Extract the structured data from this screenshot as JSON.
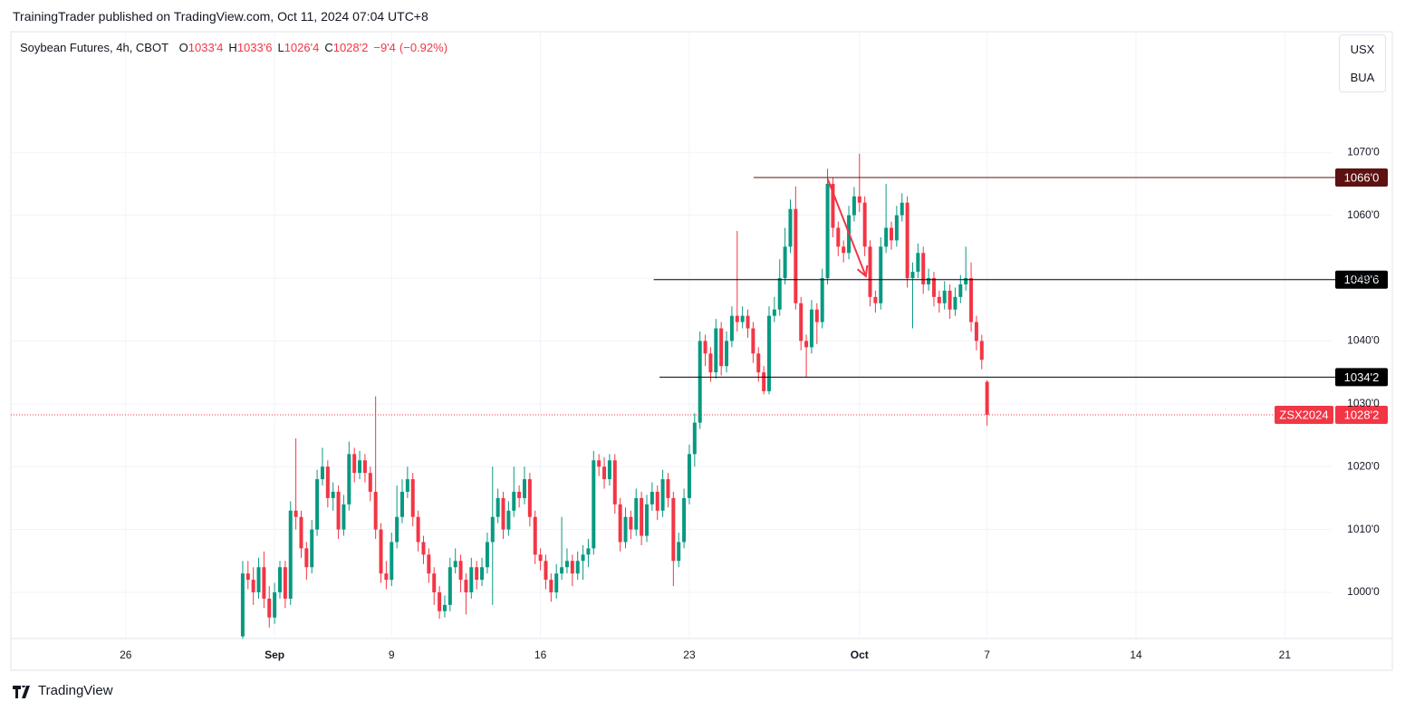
{
  "header": "TrainingTrader published on TradingView.com, Oct 11, 2024 07:04 UTC+8",
  "legend": {
    "symbol": "Soybean Futures, 4h, CBOT",
    "fields": [
      {
        "key": "O",
        "value": 1033.5,
        "label": "1033'4"
      },
      {
        "key": "H",
        "value": 1033.75,
        "label": "1033'6"
      },
      {
        "key": "L",
        "value": 1026.5,
        "label": "1026'4"
      },
      {
        "key": "C",
        "value": 1028.25,
        "label": "1028'2"
      }
    ],
    "change": {
      "value": -9.5,
      "label": "−9'4"
    },
    "change_pct": {
      "value": -0.92,
      "label": "(−0.92%)"
    }
  },
  "buttons": [
    "USX",
    "BUA"
  ],
  "footer": "TradingView",
  "chart_data": {
    "type": "candlestick",
    "up_color": "#089981",
    "down_color": "#f23645",
    "grid": true,
    "xlim": [
      -43.6,
      204.8
    ],
    "ylim": [
      992.65,
      1089.2
    ],
    "xticks": [
      {
        "value": -22,
        "label": "26"
      },
      {
        "value": 6,
        "label": "Sep"
      },
      {
        "value": 28,
        "label": "9"
      },
      {
        "value": 56,
        "label": "16"
      },
      {
        "value": 84,
        "label": "23"
      },
      {
        "value": 116,
        "label": "Oct"
      },
      {
        "value": 140,
        "label": "7"
      },
      {
        "value": 168,
        "label": "14"
      },
      {
        "value": 196,
        "label": "21"
      }
    ],
    "yticks": [
      {
        "value": 1000,
        "label": "1000'0"
      },
      {
        "value": 1010,
        "label": "1010'0"
      },
      {
        "value": 1020,
        "label": "1020'0"
      },
      {
        "value": 1030,
        "label": "1030'0"
      },
      {
        "value": 1040,
        "label": "1040'0"
      },
      {
        "value": 1050,
        "label": "1050'0"
      },
      {
        "value": 1060,
        "label": "1060'0"
      },
      {
        "value": 1070,
        "label": "1070'0"
      }
    ],
    "ohlc": [
      [
        993,
        1005,
        992.6,
        1003
      ],
      [
        1003,
        1005,
        1000.5,
        1002
      ],
      [
        1002,
        1004,
        998,
        1000
      ],
      [
        1000,
        1005.5,
        999,
        1004
      ],
      [
        1004,
        1006.5,
        997.5,
        999
      ],
      [
        999,
        1001,
        994.4,
        996
      ],
      [
        996,
        1001.5,
        995,
        1000
      ],
      [
        1000,
        1005,
        999,
        1004
      ],
      [
        1004,
        1005,
        997.5,
        999
      ],
      [
        999,
        1014.5,
        998,
        1013
      ],
      [
        1013,
        1024.5,
        1010,
        1012
      ],
      [
        1012,
        1013,
        1005.5,
        1007
      ],
      [
        1007,
        1008,
        1002,
        1004
      ],
      [
        1004,
        1011.5,
        1003,
        1010
      ],
      [
        1010,
        1019.5,
        1009,
        1018
      ],
      [
        1018,
        1023,
        1017,
        1020
      ],
      [
        1020,
        1021,
        1013.5,
        1015
      ],
      [
        1015,
        1017.5,
        1013,
        1016
      ],
      [
        1016,
        1017,
        1008.5,
        1010
      ],
      [
        1010,
        1015.5,
        1009,
        1014
      ],
      [
        1014,
        1024,
        1013,
        1022
      ],
      [
        1022,
        1023,
        1017.5,
        1019
      ],
      [
        1019,
        1022.5,
        1018,
        1021
      ],
      [
        1021,
        1022,
        1017.5,
        1019
      ],
      [
        1019,
        1020,
        1014.5,
        1016
      ],
      [
        1016,
        1031.2,
        1008.5,
        1010
      ],
      [
        1010,
        1011,
        1001.5,
        1003
      ],
      [
        1003,
        1005,
        1000.5,
        1002
      ],
      [
        1002,
        1009.5,
        1001,
        1008
      ],
      [
        1008,
        1017,
        1007,
        1012
      ],
      [
        1012,
        1018,
        1011,
        1016
      ],
      [
        1016,
        1020,
        1015,
        1018
      ],
      [
        1018,
        1019,
        1010.5,
        1012
      ],
      [
        1012,
        1013,
        1006.5,
        1008
      ],
      [
        1008,
        1009,
        1004.5,
        1006
      ],
      [
        1006,
        1007,
        1001.5,
        1003
      ],
      [
        1003,
        1004,
        998,
        1000
      ],
      [
        1000,
        1001,
        995.8,
        997
      ],
      [
        997,
        999.5,
        996,
        998
      ],
      [
        998,
        1005.5,
        997,
        1004
      ],
      [
        1004,
        1007,
        1003,
        1005
      ],
      [
        1005,
        1006,
        1000,
        1002
      ],
      [
        1002,
        1003,
        996.5,
        1000
      ],
      [
        1000,
        1005.5,
        999,
        1004
      ],
      [
        1004,
        1005,
        1000.5,
        1002
      ],
      [
        1002,
        1005.5,
        1001,
        1004
      ],
      [
        1004,
        1009.5,
        1003,
        1008
      ],
      [
        1008,
        1020,
        998,
        1012
      ],
      [
        1012,
        1016.5,
        1011,
        1015
      ],
      [
        1015,
        1016,
        1008.5,
        1010
      ],
      [
        1010,
        1014.5,
        1009,
        1013
      ],
      [
        1013,
        1020,
        1012,
        1016
      ],
      [
        1016,
        1017,
        1013.5,
        1015
      ],
      [
        1015,
        1020,
        1014,
        1018
      ],
      [
        1018,
        1019,
        1010.5,
        1012
      ],
      [
        1012,
        1013,
        1004.5,
        1006
      ],
      [
        1006,
        1007,
        1003.5,
        1005
      ],
      [
        1005,
        1006,
        1000.5,
        1002
      ],
      [
        1002,
        1003,
        998.5,
        1000
      ],
      [
        1000,
        1004.5,
        999,
        1003
      ],
      [
        1003,
        1012,
        1002,
        1004
      ],
      [
        1004,
        1007,
        1003,
        1005
      ],
      [
        1005,
        1006,
        1001,
        1003
      ],
      [
        1003,
        1006.5,
        1002,
        1005
      ],
      [
        1005,
        1007.5,
        1002,
        1006
      ],
      [
        1006,
        1008.5,
        1004,
        1007
      ],
      [
        1007,
        1022.5,
        1006,
        1021
      ],
      [
        1021,
        1022,
        1018.5,
        1020
      ],
      [
        1020,
        1021.5,
        1016.5,
        1018
      ],
      [
        1018,
        1022,
        1017,
        1021
      ],
      [
        1021,
        1022,
        1012.5,
        1014
      ],
      [
        1014,
        1015,
        1006.5,
        1008
      ],
      [
        1008,
        1013.5,
        1007,
        1012
      ],
      [
        1012,
        1013,
        1008.5,
        1010
      ],
      [
        1010,
        1016.5,
        1009,
        1015
      ],
      [
        1015,
        1016,
        1007.5,
        1009
      ],
      [
        1009,
        1015.5,
        1008,
        1014
      ],
      [
        1014,
        1017.5,
        1013,
        1016
      ],
      [
        1016,
        1017,
        1011.5,
        1013
      ],
      [
        1013,
        1019.5,
        1012,
        1018
      ],
      [
        1018,
        1019,
        1013.5,
        1015
      ],
      [
        1015,
        1016,
        1001,
        1005
      ],
      [
        1005,
        1009.5,
        1004,
        1008
      ],
      [
        1008,
        1016.5,
        1007,
        1015
      ],
      [
        1015,
        1023.5,
        1014,
        1022
      ],
      [
        1022,
        1028.5,
        1020,
        1027
      ],
      [
        1027,
        1041.5,
        1026,
        1040
      ],
      [
        1040,
        1041,
        1036,
        1038
      ],
      [
        1038,
        1039,
        1033.5,
        1035
      ],
      [
        1035,
        1043.5,
        1034,
        1042
      ],
      [
        1042,
        1043,
        1034.5,
        1036
      ],
      [
        1036,
        1041.5,
        1035,
        1040
      ],
      [
        1040,
        1045.5,
        1039,
        1044
      ],
      [
        1044,
        1057.5,
        1041.5,
        1043
      ],
      [
        1043,
        1045.5,
        1042,
        1044
      ],
      [
        1044,
        1045,
        1040.5,
        1042
      ],
      [
        1042,
        1043,
        1036.5,
        1038
      ],
      [
        1038,
        1039,
        1033.5,
        1035
      ],
      [
        1035,
        1036,
        1031.5,
        1032
      ],
      [
        1032,
        1045.5,
        1031.5,
        1044
      ],
      [
        1044,
        1047,
        1043,
        1045
      ],
      [
        1045,
        1053,
        1044,
        1050
      ],
      [
        1050,
        1058,
        1049,
        1055
      ],
      [
        1055,
        1062.5,
        1054,
        1061
      ],
      [
        1061,
        1064.6,
        1045,
        1046
      ],
      [
        1046,
        1047,
        1038.5,
        1040
      ],
      [
        1040,
        1041,
        1034.2,
        1039
      ],
      [
        1039,
        1046.5,
        1038,
        1045
      ],
      [
        1045,
        1046,
        1039.5,
        1043
      ],
      [
        1043,
        1051.5,
        1042,
        1050
      ],
      [
        1050,
        1067.4,
        1049,
        1065
      ],
      [
        1065,
        1066,
        1056.5,
        1058
      ],
      [
        1058,
        1059,
        1053.5,
        1055
      ],
      [
        1055,
        1056,
        1052.5,
        1054
      ],
      [
        1054,
        1061.5,
        1053,
        1060
      ],
      [
        1060,
        1064.5,
        1059,
        1063
      ],
      [
        1063,
        1069.8,
        1060.5,
        1062
      ],
      [
        1062,
        1063,
        1053.5,
        1055
      ],
      [
        1055,
        1056,
        1045.5,
        1047
      ],
      [
        1047,
        1048,
        1044.5,
        1046
      ],
      [
        1046,
        1056.5,
        1045,
        1055
      ],
      [
        1055,
        1065,
        1054,
        1058
      ],
      [
        1058,
        1059,
        1054.5,
        1056
      ],
      [
        1056,
        1061.5,
        1055,
        1060
      ],
      [
        1060,
        1063.5,
        1059,
        1062
      ],
      [
        1062,
        1063,
        1048.5,
        1050
      ],
      [
        1050,
        1052.5,
        1042,
        1051
      ],
      [
        1051,
        1055.5,
        1050,
        1054
      ],
      [
        1054,
        1055,
        1047.5,
        1049
      ],
      [
        1049,
        1051.5,
        1048,
        1050
      ],
      [
        1050,
        1051,
        1045.5,
        1047
      ],
      [
        1047,
        1048,
        1044.5,
        1046
      ],
      [
        1046,
        1049.5,
        1045,
        1048
      ],
      [
        1048,
        1049,
        1043.5,
        1045
      ],
      [
        1045,
        1048.5,
        1044,
        1047
      ],
      [
        1047,
        1050.5,
        1046,
        1049
      ],
      [
        1049,
        1055,
        1048,
        1050
      ],
      [
        1050,
        1052.5,
        1041.5,
        1043
      ],
      [
        1043,
        1044,
        1038.5,
        1040
      ],
      [
        1040,
        1041,
        1035.5,
        1037
      ],
      [
        1033.5,
        1033.75,
        1026.5,
        1028.25
      ]
    ],
    "hlines": [
      {
        "value": 1066,
        "label": "1066'0",
        "x_start": 96.1,
        "color": "#5d1111"
      },
      {
        "value": 1049.75,
        "label": "1049'6",
        "x_start": 77.3,
        "color": "#000000"
      },
      {
        "value": 1034.25,
        "label": "1034'2",
        "x_start": 78.4,
        "color": "#000000"
      }
    ],
    "arrow": {
      "from": [
        110,
        1065.8
      ],
      "to": [
        117.2,
        1050.3
      ],
      "color": "#f23645"
    },
    "last_price": {
      "symbol": "ZSX2024",
      "value": 1028.25,
      "label": "1028'2",
      "color": "#f23645"
    }
  }
}
